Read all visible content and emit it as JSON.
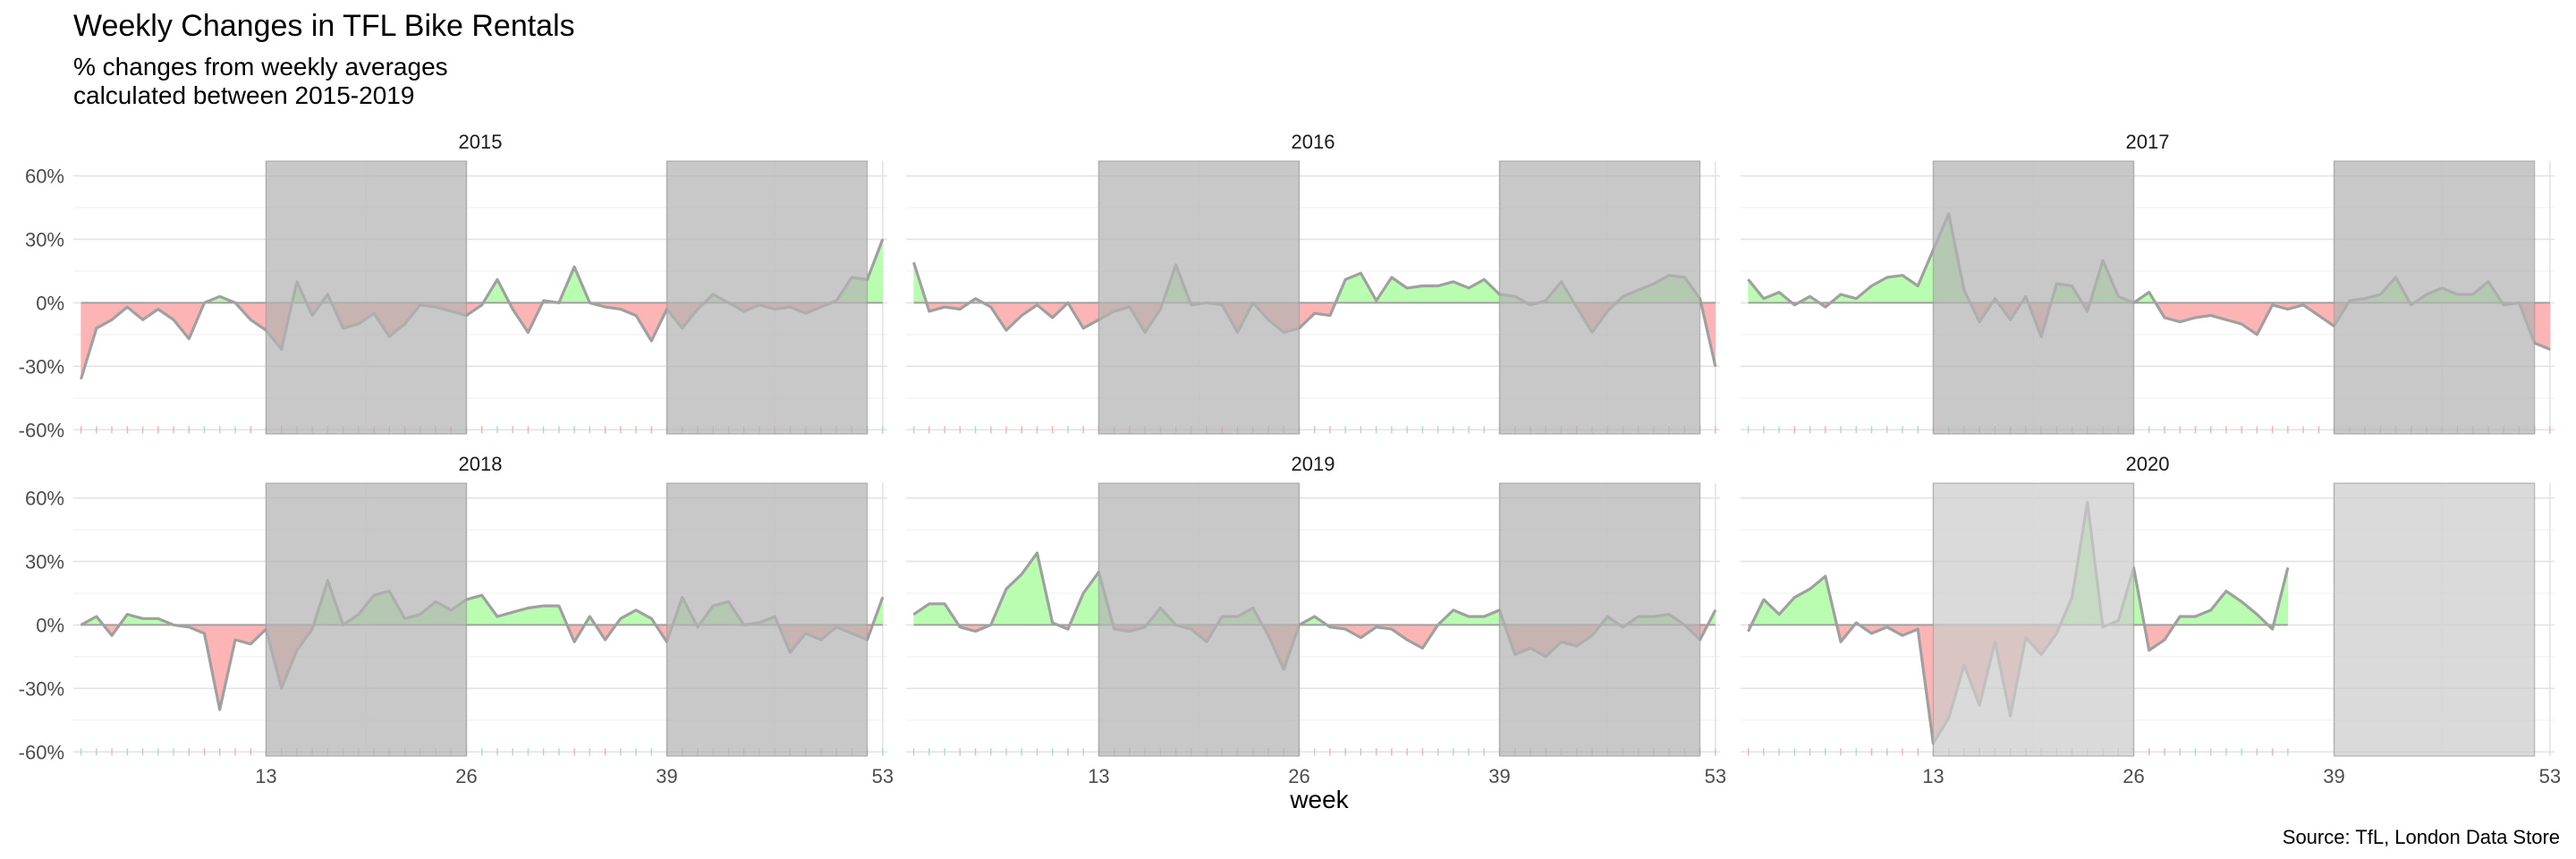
{
  "chart_data": {
    "type": "area",
    "title": "Weekly Changes in TFL Bike Rentals",
    "subtitle_lines": [
      "% changes from weekly averages",
      "calculated between 2015-2019"
    ],
    "xlabel": "week",
    "caption": "Source: TfL, London Data Store",
    "x_ticks": [
      13,
      26,
      39,
      53
    ],
    "y_ticks": [
      {
        "value": -60,
        "label": "-60%"
      },
      {
        "value": -30,
        "label": "-30%"
      },
      {
        "value": 0,
        "label": "0%"
      },
      {
        "value": 30,
        "label": "30%"
      },
      {
        "value": 60,
        "label": "60%"
      }
    ],
    "xlim": [
      0.5,
      53.3
    ],
    "ylim": [
      -62,
      67
    ],
    "shaded_weeks": [
      [
        13,
        26
      ],
      [
        39,
        52
      ]
    ],
    "colors": {
      "positive": "#b8fdb0",
      "negative": "#fdb4b4",
      "line": "#a0a0a0",
      "shade_2015_2019": "#b3b3b3",
      "shade_2020": "#cccccc",
      "rug_pos": "#a8dcc8",
      "rug_neg": "#f4b0b0"
    },
    "panels": [
      {
        "year": "2015",
        "shade": "dark",
        "values": [
          -36,
          -12,
          -8,
          -2,
          -8,
          -3,
          -8,
          -17,
          0,
          3,
          0,
          -8,
          -13,
          -22,
          10,
          -6,
          4,
          -12,
          -10,
          -5,
          -16,
          -10,
          -1,
          -2,
          -4,
          -6,
          -1,
          11,
          -3,
          -14,
          1,
          0,
          17,
          0,
          -2,
          -3,
          -6,
          -18,
          -3,
          -12,
          -3,
          4,
          0,
          -4,
          -1,
          -3,
          -2,
          -5,
          -2,
          1,
          12,
          11,
          30
        ]
      },
      {
        "year": "2016",
        "shade": "dark",
        "values": [
          19,
          -4,
          -2,
          -3,
          2,
          -2,
          -13,
          -6,
          -1,
          -7,
          0,
          -12,
          -8,
          -4,
          -2,
          -14,
          -3,
          18,
          -1,
          0,
          -1,
          -14,
          0,
          -8,
          -14,
          -12,
          -5,
          -6,
          11,
          14,
          1,
          12,
          7,
          8,
          8,
          10,
          7,
          11,
          4,
          3,
          -1,
          1,
          10,
          -2,
          -14,
          -4,
          3,
          6,
          9,
          13,
          12,
          2,
          -30
        ]
      },
      {
        "year": "2017",
        "shade": "dark",
        "values": [
          11,
          2,
          5,
          -1,
          3,
          -2,
          4,
          2,
          8,
          12,
          13,
          8,
          25,
          42,
          6,
          -9,
          2,
          -8,
          3,
          -16,
          9,
          8,
          -4,
          20,
          3,
          0,
          5,
          -7,
          -9,
          -7,
          -6,
          -8,
          -10,
          -15,
          -1,
          -3,
          -1,
          -6,
          -11,
          1,
          2,
          4,
          12,
          -1,
          4,
          7,
          4,
          4,
          10,
          -1,
          0,
          -19,
          -22
        ]
      },
      {
        "year": "2018",
        "shade": "dark",
        "values": [
          0,
          4,
          -5,
          5,
          3,
          3,
          0,
          -1,
          -4,
          -40,
          -7,
          -9,
          -2,
          -30,
          -12,
          -2,
          21,
          0,
          5,
          14,
          16,
          3,
          5,
          11,
          7,
          12,
          14,
          4,
          6,
          8,
          9,
          9,
          -8,
          4,
          -7,
          3,
          7,
          3,
          -8,
          13,
          -1,
          9,
          11,
          0,
          1,
          4,
          -13,
          -4,
          -7,
          -1,
          -4,
          -7,
          13
        ]
      },
      {
        "year": "2019",
        "shade": "dark",
        "values": [
          5,
          10,
          10,
          -1,
          -3,
          0,
          17,
          24,
          34,
          1,
          -2,
          15,
          25,
          -2,
          -3,
          -1,
          8,
          0,
          -2,
          -8,
          4,
          4,
          8,
          -5,
          -21,
          0,
          4,
          -1,
          -2,
          -6,
          -1,
          -2,
          -7,
          -11,
          0,
          7,
          4,
          4,
          7,
          -14,
          -11,
          -15,
          -8,
          -10,
          -5,
          4,
          -1,
          4,
          4,
          5,
          0,
          -7,
          7
        ]
      },
      {
        "year": "2020",
        "shade": "light",
        "values": [
          -3,
          12,
          5,
          13,
          17,
          23,
          -8,
          1,
          -4,
          -1,
          -5,
          -2,
          -56,
          -44,
          -19,
          -38,
          -8,
          -43,
          -6,
          -14,
          -4,
          13,
          58,
          -1,
          2,
          27,
          -12,
          -7,
          4,
          4,
          7,
          16,
          11,
          5,
          -2,
          27
        ]
      }
    ]
  }
}
